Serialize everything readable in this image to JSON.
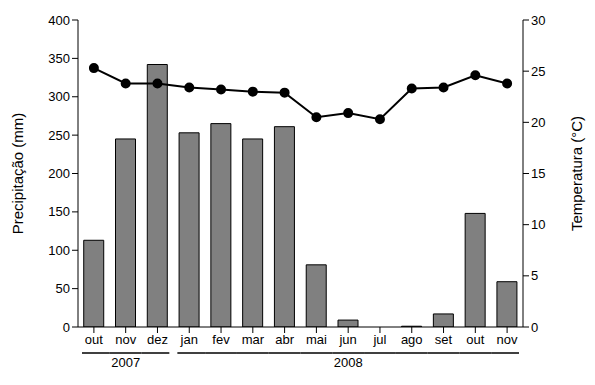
{
  "chart_data": {
    "type": "bar",
    "categories": [
      "out",
      "nov",
      "dez",
      "jan",
      "fev",
      "mar",
      "abr",
      "mai",
      "jun",
      "jul",
      "ago",
      "set",
      "out",
      "nov"
    ],
    "x_groups": [
      {
        "label": "2007",
        "from": 0,
        "to": 2
      },
      {
        "label": "2008",
        "from": 3,
        "to": 13
      }
    ],
    "y_label": "Precipitação (mm)",
    "y2_label": "Temperatura (°C)",
    "ylim": [
      0,
      400
    ],
    "yticks": [
      0,
      50,
      100,
      150,
      200,
      250,
      300,
      350,
      400
    ],
    "y2lim": [
      0,
      30
    ],
    "y2ticks": [
      0,
      5,
      10,
      15,
      20,
      25,
      30
    ],
    "grid": false,
    "series": [
      {
        "type": "bar",
        "color": "#808080",
        "values": [
          113,
          245,
          342,
          253,
          265,
          245,
          261,
          81,
          9,
          0,
          1,
          17,
          148,
          59
        ]
      },
      {
        "type": "line",
        "axis": "y2",
        "color": "#000000",
        "marker": "circle",
        "values": [
          25.3,
          23.8,
          23.8,
          23.4,
          23.2,
          23.0,
          22.9,
          20.5,
          20.9,
          20.3,
          23.3,
          23.4,
          24.6,
          23.8
        ]
      }
    ]
  }
}
